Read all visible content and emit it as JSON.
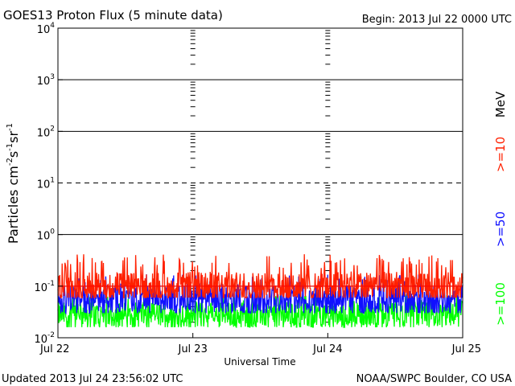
{
  "header": {
    "title": "GOES13 Proton Flux (5 minute data)",
    "begin": "Begin: 2013 Jul 22 0000 UTC"
  },
  "footer": {
    "updated": "Updated 2013 Jul 24 23:56:02 UTC",
    "credit": "NOAA/SWPC Boulder, CO USA"
  },
  "chart_data": {
    "type": "line",
    "title": "GOES13 Proton Flux (5 minute data)",
    "xlabel": "Universal Time",
    "ylabel_parts": [
      "Particles cm",
      "-2",
      "s",
      "-1",
      "sr",
      "-1"
    ],
    "y_scale": "log",
    "ylim": [
      0.01,
      10000
    ],
    "y_ticks": [
      {
        "base": "10",
        "exp": "-2"
      },
      {
        "base": "10",
        "exp": "-1"
      },
      {
        "base": "10",
        "exp": "0"
      },
      {
        "base": "10",
        "exp": "1"
      },
      {
        "base": "10",
        "exp": "2"
      },
      {
        "base": "10",
        "exp": "3"
      },
      {
        "base": "10",
        "exp": "4"
      }
    ],
    "solid_gridlines_at": [
      0.1,
      1,
      100,
      1000
    ],
    "dashed_gridlines_at": [
      10
    ],
    "threshold_line": 0.1,
    "x_ticks": [
      "Jul 22",
      "Jul 23",
      "Jul 24",
      "Jul 25"
    ],
    "xlim_days": [
      0,
      3
    ],
    "energy_unit": "MeV",
    "series": [
      {
        "name": ">=10",
        "color": "#ff2000",
        "typical": 0.1,
        "low": 0.06,
        "high": 0.22,
        "max": 0.42
      },
      {
        "name": ">=50",
        "color": "#1010ff",
        "typical": 0.055,
        "low": 0.03,
        "high": 0.1,
        "max": 0.18
      },
      {
        "name": ">=100",
        "color": "#00ff00",
        "typical": 0.028,
        "low": 0.016,
        "high": 0.05,
        "max": 0.07
      }
    ]
  }
}
